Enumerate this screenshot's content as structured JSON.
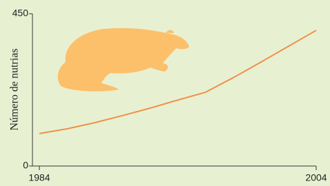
{
  "chart_data": {
    "type": "line",
    "y_label": "Número de nutrias",
    "x": [
      1984,
      1986,
      1988,
      1990,
      1992,
      1994,
      1996,
      1998,
      2000,
      2002,
      2004
    ],
    "series": [
      {
        "color": "#f0904a",
        "values": [
          96,
          110,
          128,
          149,
          171,
          195,
          218,
          261,
          307,
          354,
          401
        ]
      }
    ],
    "xlim": [
      1984,
      2004
    ],
    "xticks": [
      1984,
      2004
    ],
    "ylim": [
      0,
      450
    ],
    "yticks": [
      0,
      450
    ],
    "grid": false
  }
}
